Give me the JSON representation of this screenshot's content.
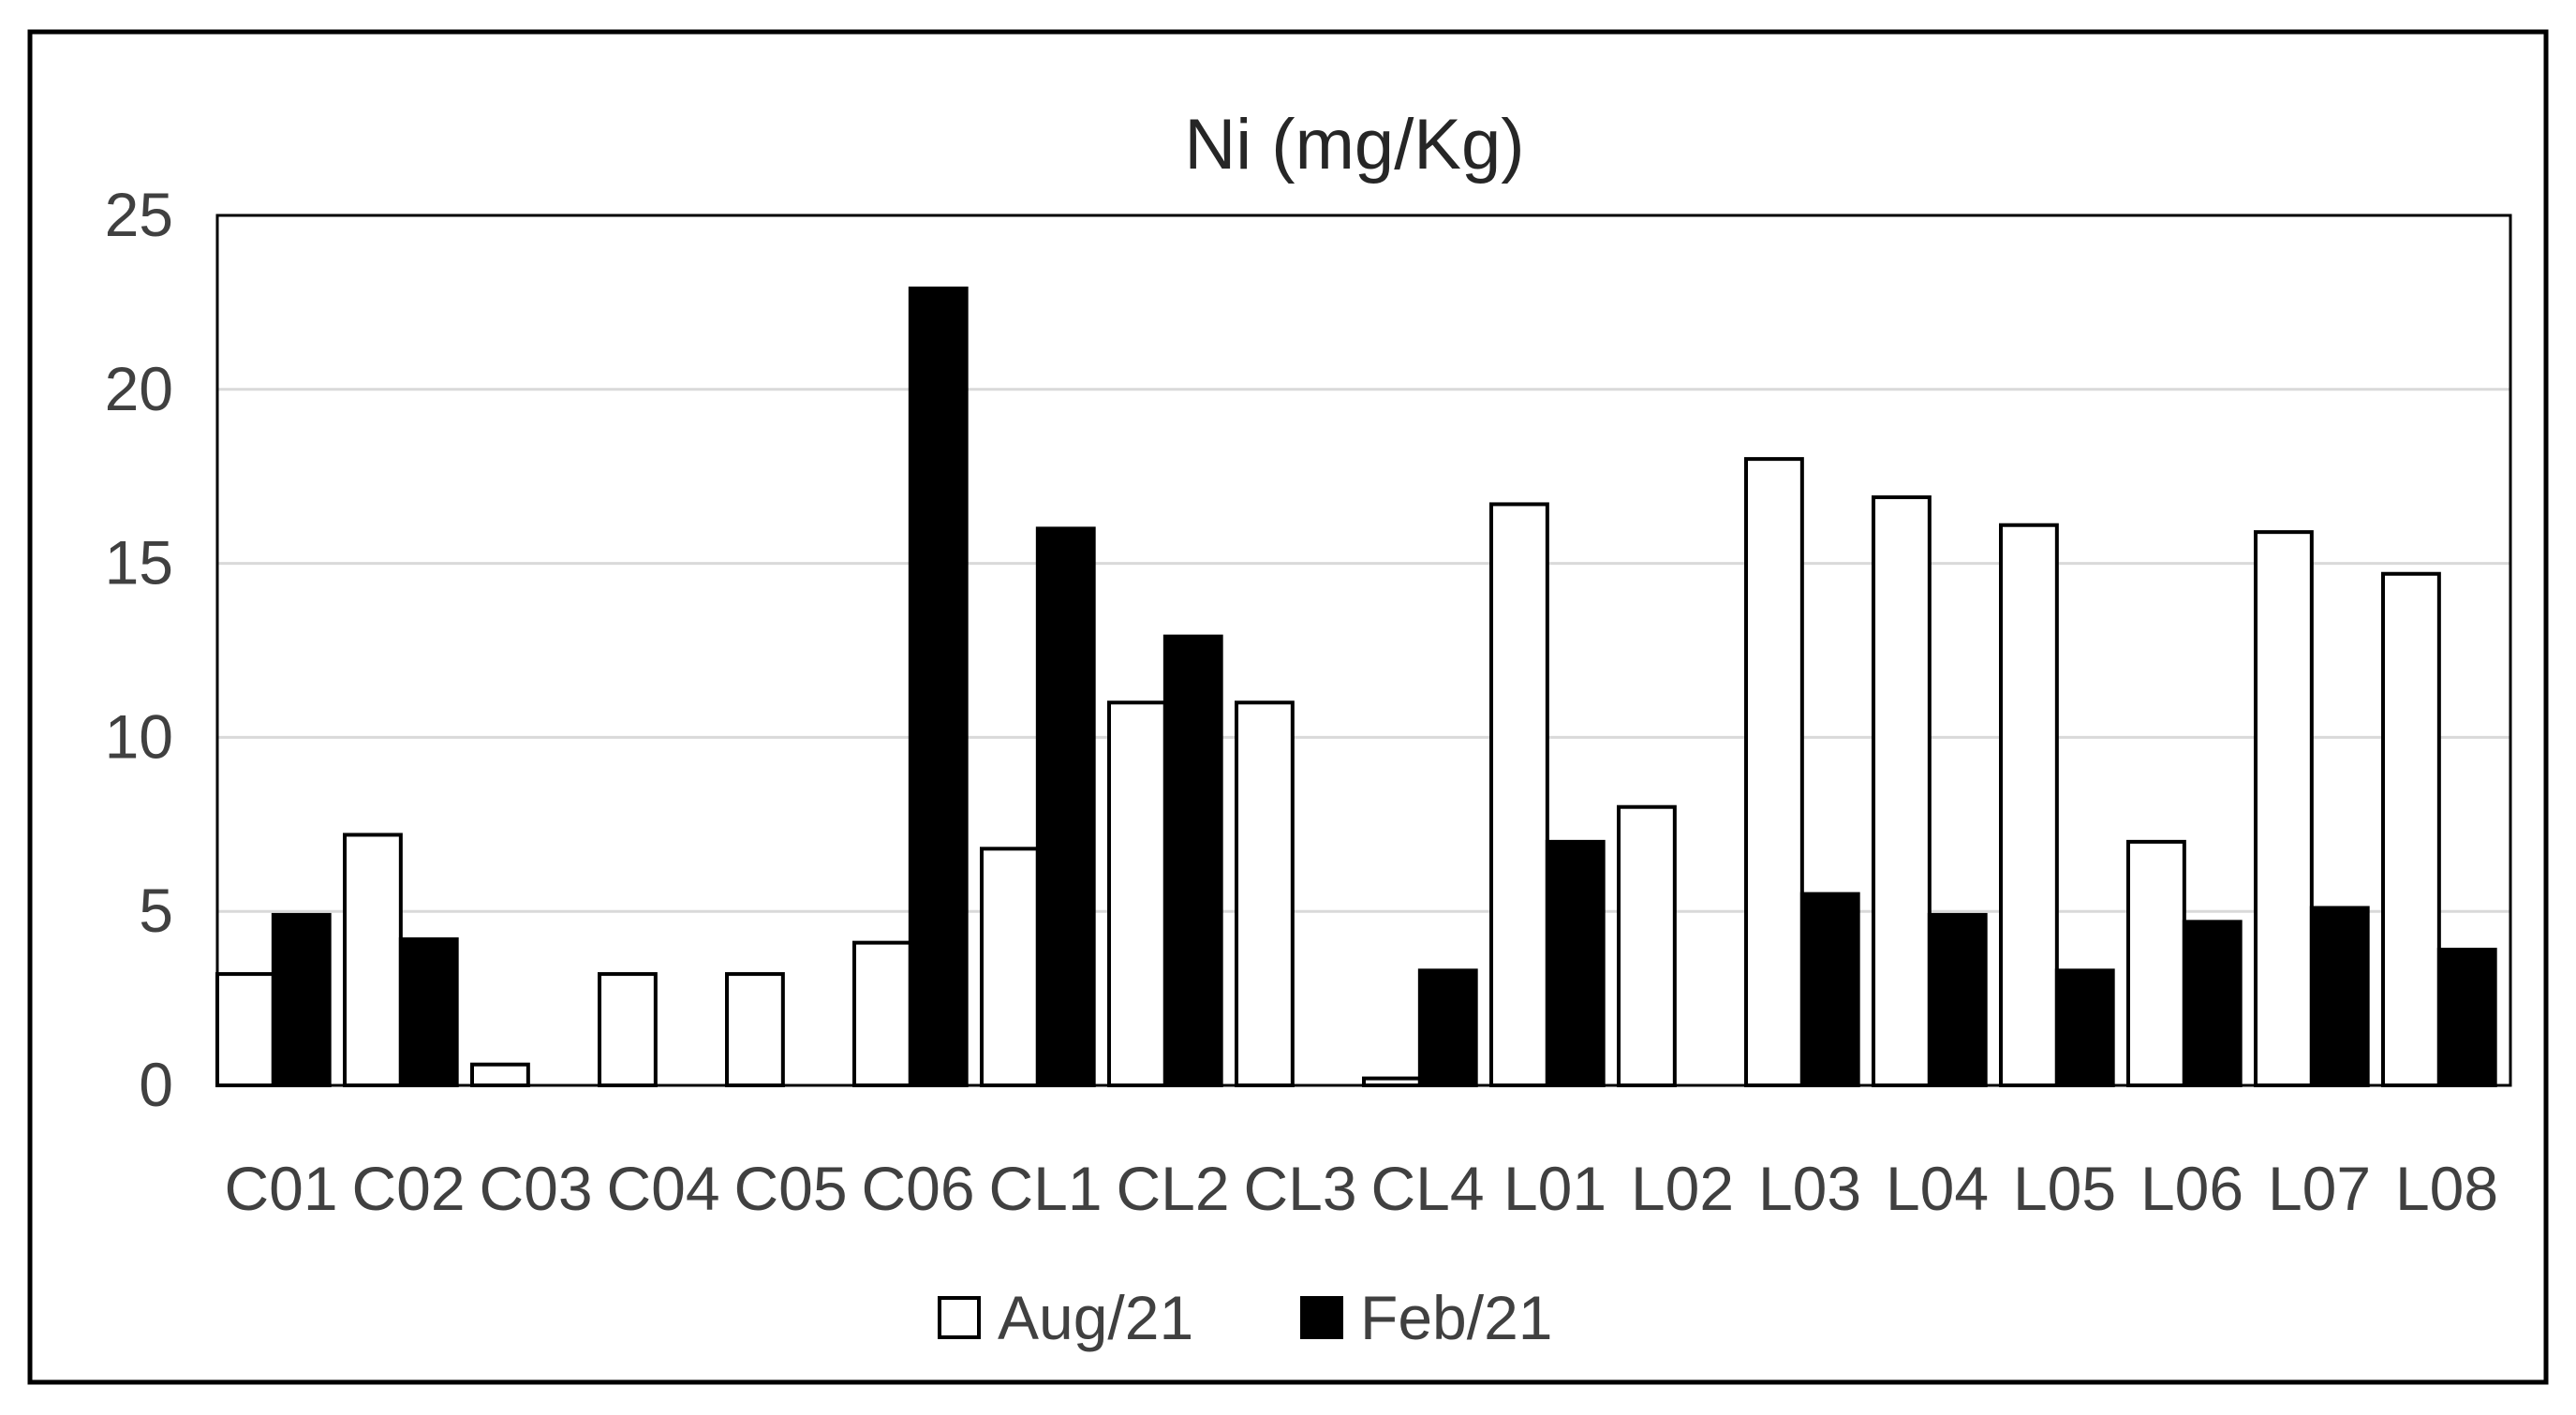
{
  "chart_data": {
    "type": "bar",
    "title": "Ni (mg/Kg)",
    "xlabel": "",
    "ylabel": "",
    "ylim": [
      0,
      25
    ],
    "yticks": [
      0,
      5,
      10,
      15,
      20,
      25
    ],
    "grid": true,
    "legend_position": "bottom",
    "categories": [
      "C01",
      "C02",
      "C03",
      "C04",
      "C05",
      "C06",
      "CL1",
      "CL2",
      "CL3",
      "CL4",
      "L01",
      "L02",
      "L03",
      "L04",
      "L05",
      "L06",
      "L07",
      "L08"
    ],
    "series": [
      {
        "name": "Aug/21",
        "color": "#ffffff",
        "values": [
          3.2,
          7.2,
          0.6,
          3.2,
          3.2,
          4.1,
          6.8,
          11.0,
          11.0,
          0.2,
          16.7,
          8.0,
          18.0,
          16.9,
          16.1,
          7.0,
          15.9,
          14.7
        ]
      },
      {
        "name": "Feb/21",
        "color": "#000000",
        "values": [
          4.9,
          4.2,
          null,
          null,
          null,
          22.9,
          16.0,
          12.9,
          null,
          3.3,
          7.0,
          null,
          5.5,
          4.9,
          3.3,
          4.7,
          5.1,
          3.9
        ]
      }
    ]
  }
}
